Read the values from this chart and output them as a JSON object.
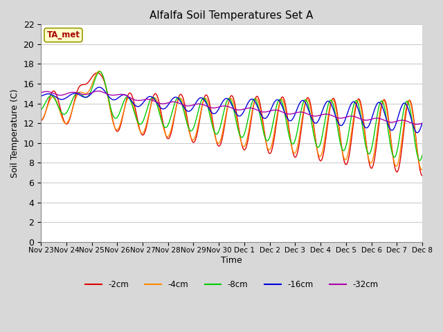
{
  "title": "Alfalfa Soil Temperatures Set A",
  "xlabel": "Time",
  "ylabel": "Soil Temperature (C)",
  "ylim": [
    0,
    22
  ],
  "yticks": [
    0,
    2,
    4,
    6,
    8,
    10,
    12,
    14,
    16,
    18,
    20,
    22
  ],
  "fig_bg_color": "#d8d8d8",
  "plot_bg_color": "#ffffff",
  "grid_color": "#cccccc",
  "series_colors": [
    "#dd0000",
    "#ff8800",
    "#00cc00",
    "#0000dd",
    "#aa00aa"
  ],
  "series_labels": [
    "-2cm",
    "-4cm",
    "-8cm",
    "-16cm",
    "-32cm"
  ],
  "annotation_text": "TA_met",
  "annotation_box_color": "#ffffcc",
  "annotation_text_color": "#aa0000",
  "tick_positions": [
    0,
    1,
    2,
    3,
    4,
    5,
    6,
    7,
    8,
    9,
    10,
    11,
    12,
    13,
    14,
    15
  ],
  "tick_labels": [
    "Nov 23",
    "Nov 24",
    "Nov 25",
    "Nov 26",
    "Nov 27",
    "Nov 28",
    "Nov 29",
    "Nov 30",
    "Dec 1",
    "Dec 2",
    "Dec 3",
    "Dec 4",
    "Dec 5",
    "Dec 6",
    "Dec 7",
    "Dec 8"
  ]
}
